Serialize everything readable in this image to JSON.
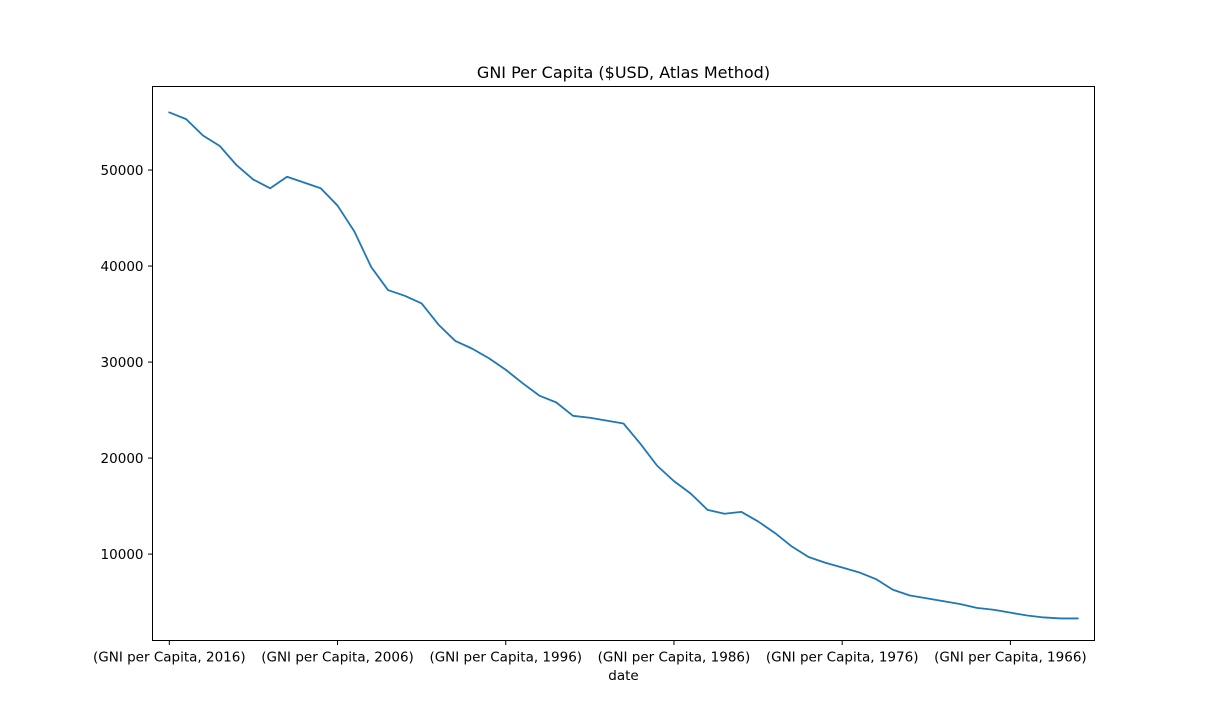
{
  "chart_data": {
    "type": "line",
    "title": "GNI Per Capita ($USD, Atlas Method)",
    "xlabel": "date",
    "ylabel": "",
    "x_tick_labels": [
      "(GNI per Capita, 2016)",
      "(GNI per Capita, 2006)",
      "(GNI per Capita, 1996)",
      "(GNI per Capita, 1986)",
      "(GNI per Capita, 1976)",
      "(GNI per Capita, 1966)"
    ],
    "x_tick_years": [
      2016,
      2006,
      1996,
      1986,
      1976,
      1966
    ],
    "y_ticks": [
      10000,
      20000,
      30000,
      40000,
      50000
    ],
    "y_tick_labels": [
      "10000",
      "20000",
      "30000",
      "40000",
      "50000"
    ],
    "xlim": [
      2017,
      1961
    ],
    "ylim": [
      1000,
      58700
    ],
    "grid": false,
    "legend": "none",
    "line_color": "#1f77b4",
    "series": [
      {
        "x": [
          2016,
          2015,
          2014,
          2013,
          2012,
          2011,
          2010,
          2009,
          2008,
          2007,
          2006,
          2005,
          2004,
          2003,
          2002,
          2001,
          2000,
          1999,
          1998,
          1997,
          1996,
          1995,
          1994,
          1993,
          1992,
          1991,
          1990,
          1989,
          1988,
          1987,
          1986,
          1985,
          1984,
          1983,
          1982,
          1981,
          1980,
          1979,
          1978,
          1977,
          1976,
          1975,
          1974,
          1973,
          1972,
          1971,
          1970,
          1969,
          1968,
          1967,
          1966,
          1965,
          1964,
          1963,
          1962
        ],
        "values": [
          56000,
          55300,
          53600,
          52500,
          50500,
          49000,
          48100,
          49300,
          48700,
          48100,
          46300,
          43600,
          39900,
          37500,
          36900,
          36100,
          33900,
          32200,
          31400,
          30400,
          29200,
          27800,
          26500,
          25800,
          24400,
          24200,
          23900,
          23600,
          21500,
          19200,
          17600,
          16300,
          14600,
          14200,
          14400,
          13400,
          12200,
          10800,
          9700,
          9100,
          8600,
          8100,
          7400,
          6300,
          5700,
          5400,
          5100,
          4800,
          4400,
          4200,
          3900,
          3600,
          3400,
          3300,
          3300
        ]
      }
    ]
  }
}
